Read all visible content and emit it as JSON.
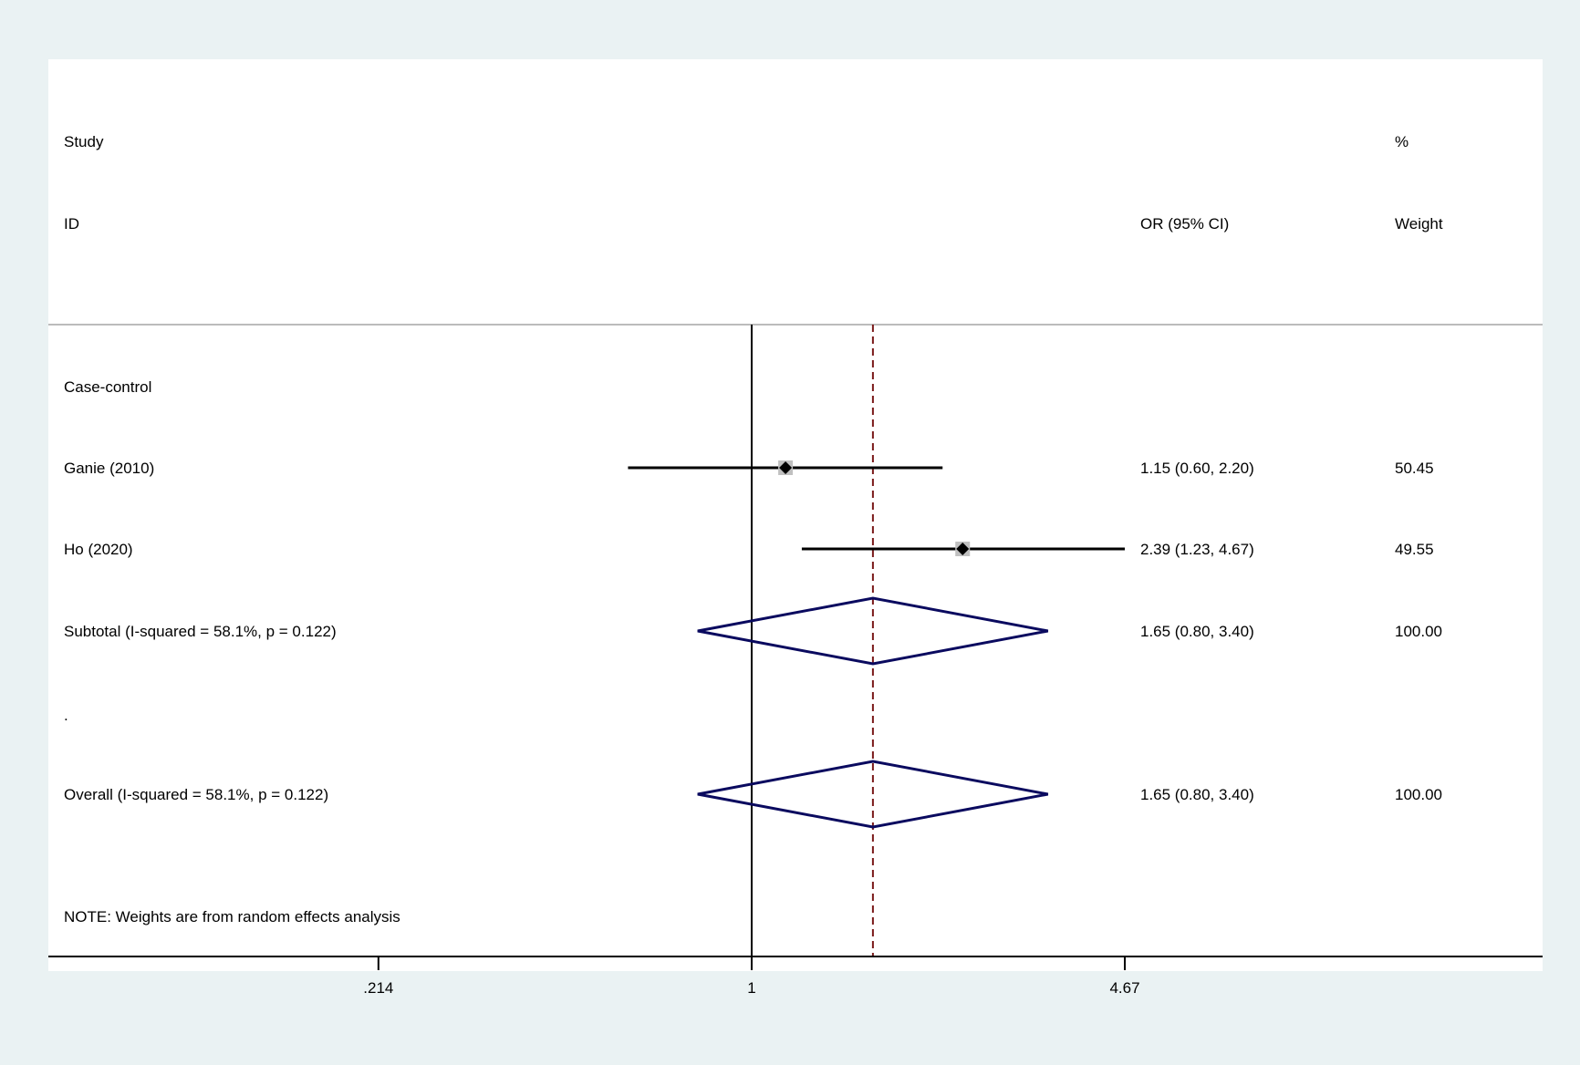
{
  "chart_data": {
    "type": "forest",
    "scale": "log",
    "headers": {
      "study_line1": "Study",
      "study_line2": "ID",
      "effect": "OR (95% CI)",
      "weight_line1": "%",
      "weight_line2": "Weight"
    },
    "rows": [
      {
        "kind": "group",
        "label": "Case-control"
      },
      {
        "kind": "study",
        "label": "Ganie (2010)",
        "or": 1.15,
        "lo": 0.6,
        "hi": 2.2,
        "ci_text": "1.15 (0.60, 2.20)",
        "weight": "50.45",
        "weight_value": 50.45
      },
      {
        "kind": "study",
        "label": "Ho (2020)",
        "or": 2.39,
        "lo": 1.23,
        "hi": 4.67,
        "ci_text": "2.39 (1.23, 4.67)",
        "weight": "49.55",
        "weight_value": 49.55
      },
      {
        "kind": "pooled",
        "label": "Subtotal  (I-squared = 58.1%, p = 0.122)",
        "or": 1.65,
        "lo": 0.8,
        "hi": 3.4,
        "ci_text": "1.65 (0.80, 3.40)",
        "weight": "100.00"
      },
      {
        "kind": "spacer",
        "label": "."
      },
      {
        "kind": "pooled",
        "label": "Overall  (I-squared = 58.1%, p = 0.122)",
        "or": 1.65,
        "lo": 0.8,
        "hi": 3.4,
        "ci_text": "1.65 (0.80, 3.40)",
        "weight": "100.00"
      }
    ],
    "note": "NOTE: Weights are from random effects analysis",
    "null_value": 1,
    "overall_value": 1.65,
    "x_ticks": [
      {
        "value": 0.214,
        "label": ".214"
      },
      {
        "value": 1,
        "label": "1"
      },
      {
        "value": 4.67,
        "label": "4.67"
      }
    ],
    "colors": {
      "background": "#eaf2f3",
      "plot": "#ffffff",
      "ci_line": "#000000",
      "box": "#c0c0c0",
      "point": "#000000",
      "diamond": "#0a0a5f",
      "overall_line": "#7a1a1a",
      "separator": "#bbbbbb"
    }
  }
}
